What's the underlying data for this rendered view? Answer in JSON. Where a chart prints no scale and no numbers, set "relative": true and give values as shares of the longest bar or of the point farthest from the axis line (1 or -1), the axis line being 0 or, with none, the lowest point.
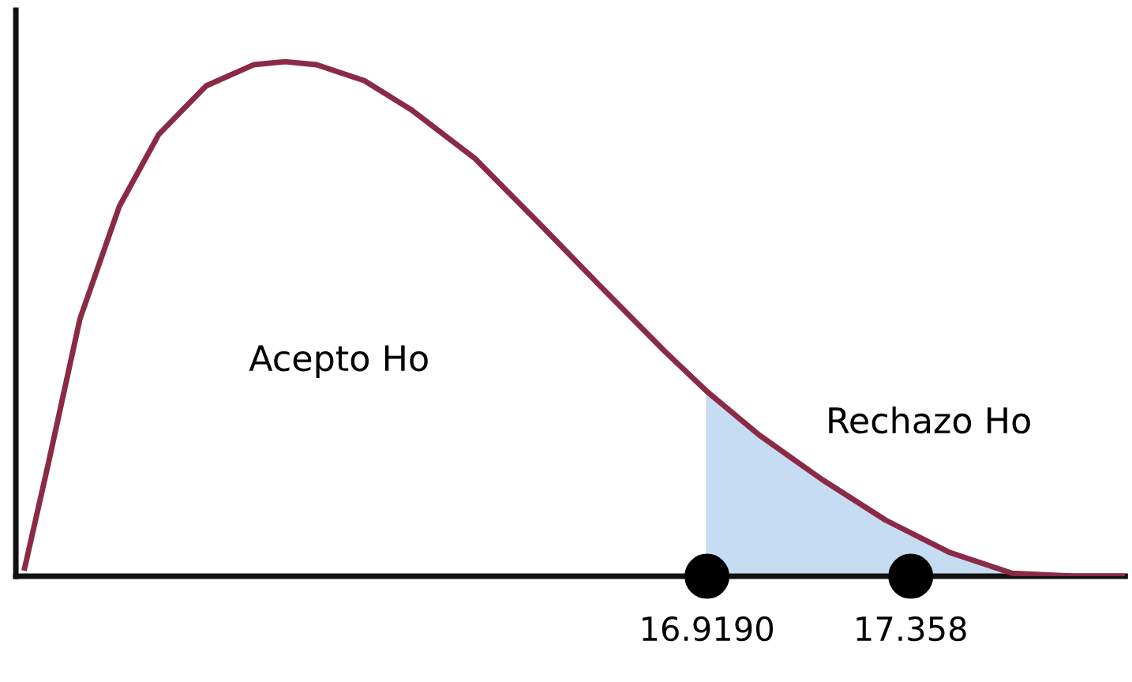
{
  "chart_data": {
    "type": "line",
    "relative": true,
    "tick_labels": "x",
    "grid": false,
    "xlim": [
      15.43,
      17.82
    ],
    "xticks": [
      {
        "value": 16.919,
        "label": "16.9190"
      },
      17.358
    ],
    "series": [
      {
        "color": "#8b2a45",
        "x": [
          15.449,
          15.5,
          15.568,
          15.653,
          15.738,
          15.84,
          15.942,
          16.01,
          16.078,
          16.181,
          16.283,
          16.419,
          16.555,
          16.691,
          16.827,
          16.919,
          17.031,
          17.167,
          17.304,
          17.44,
          17.576,
          17.712,
          17.814
        ],
        "values": [
          0.016,
          0.219,
          0.5,
          0.719,
          0.859,
          0.953,
          0.994,
          1,
          0.994,
          0.963,
          0.906,
          0.812,
          0.688,
          0.562,
          0.438,
          0.359,
          0.275,
          0.188,
          0.109,
          0.047,
          0.006,
          0,
          0
        ]
      },
      {
        "type": "area",
        "color": "#c5dcf2",
        "x": [
          16.919,
          17.031,
          17.167,
          17.304,
          17.44,
          17.576,
          17.712
        ],
        "values": [
          0.359,
          0.275,
          0.188,
          0.109,
          0.047,
          0.006,
          0
        ]
      },
      {
        "type": "scatter",
        "color": "#000000",
        "x": [
          16.919,
          17.358
        ],
        "values": [
          0,
          0
        ]
      }
    ],
    "annotations": [
      "Acepto Ho",
      "Rechazo Ho"
    ]
  }
}
